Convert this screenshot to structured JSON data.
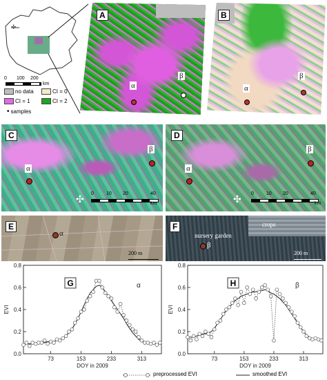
{
  "overview": {
    "scale_ticks": [
      "0",
      "100",
      "200"
    ],
    "scale_unit": "km",
    "legend": [
      {
        "label": "no data",
        "color": "#bdbdbd"
      },
      {
        "label": "CI = 0",
        "color": "#f5e9c8"
      },
      {
        "label": "CI = 1",
        "color": "#e36ae6"
      },
      {
        "label": "CI = 2",
        "color": "#1fa51f"
      },
      {
        "label": "samples",
        "color": "#000000"
      }
    ]
  },
  "panels": {
    "A": {
      "label": "A",
      "alpha": "α",
      "beta": "β"
    },
    "B": {
      "label": "B",
      "alpha": "α",
      "beta": "β"
    },
    "C": {
      "label": "C",
      "alpha": "α",
      "beta": "β",
      "scale": [
        "0",
        "10",
        "20",
        "40"
      ],
      "unit": "km"
    },
    "D": {
      "label": "D",
      "alpha": "α",
      "beta": "β",
      "scale": [
        "0",
        "10",
        "20",
        "40"
      ],
      "unit": "km"
    },
    "E": {
      "label": "E",
      "alpha": "α",
      "scale": "200 m"
    },
    "F": {
      "label": "F",
      "beta": "β",
      "scale": "200 m",
      "nursery": "nursery garden",
      "crops": "crops"
    },
    "G": {
      "label": "G",
      "greek": "α"
    },
    "H": {
      "label": "H",
      "greek": "β"
    }
  },
  "axes": {
    "ylabel": "EVI",
    "xlabel": "DOY in 2009",
    "xticks": [
      "73",
      "153",
      "233",
      "313"
    ],
    "yticks": [
      "0.0",
      "0.2",
      "0.4",
      "0.6",
      "0.8"
    ]
  },
  "footer": {
    "preprocessed": "preprocessed EVI",
    "smoothed": "smoothed EVI"
  },
  "chart_data": [
    {
      "type": "line",
      "panel": "G",
      "x": [
        1,
        9,
        17,
        25,
        33,
        41,
        49,
        57,
        65,
        73,
        81,
        89,
        97,
        105,
        113,
        121,
        129,
        137,
        145,
        153,
        161,
        169,
        177,
        185,
        193,
        201,
        209,
        217,
        225,
        233,
        241,
        249,
        257,
        265,
        273,
        281,
        289,
        297,
        305,
        313,
        321,
        329,
        337,
        345,
        353,
        361
      ],
      "series": [
        {
          "name": "preprocessed EVI",
          "values": [
            0.08,
            0.1,
            0.07,
            0.1,
            0.09,
            0.1,
            0.1,
            0.12,
            0.09,
            0.11,
            0.1,
            0.13,
            0.12,
            0.14,
            0.16,
            0.2,
            0.22,
            0.28,
            0.32,
            0.38,
            0.4,
            0.48,
            0.52,
            0.56,
            0.66,
            0.66,
            0.6,
            0.55,
            0.52,
            0.5,
            0.42,
            0.38,
            0.45,
            0.35,
            0.3,
            0.26,
            0.22,
            0.2,
            0.15,
            0.12,
            0.1,
            0.1,
            0.09,
            0.1,
            0.08,
            0.1
          ]
        },
        {
          "name": "smoothed EVI",
          "values": [
            0.09,
            0.09,
            0.09,
            0.09,
            0.1,
            0.1,
            0.1,
            0.1,
            0.11,
            0.11,
            0.11,
            0.12,
            0.13,
            0.14,
            0.16,
            0.19,
            0.22,
            0.27,
            0.32,
            0.38,
            0.44,
            0.5,
            0.55,
            0.58,
            0.61,
            0.62,
            0.6,
            0.56,
            0.52,
            0.48,
            0.44,
            0.4,
            0.36,
            0.32,
            0.27,
            0.23,
            0.19,
            0.16,
            0.13,
            0.11,
            0.1,
            0.1,
            0.09,
            0.09,
            0.09,
            0.09
          ]
        }
      ],
      "xlabel": "DOY in 2009",
      "ylabel": "EVI",
      "xlim": [
        1,
        365
      ],
      "ylim": [
        0,
        0.8
      ]
    },
    {
      "type": "line",
      "panel": "H",
      "x": [
        1,
        9,
        17,
        25,
        33,
        41,
        49,
        57,
        65,
        73,
        81,
        89,
        97,
        105,
        113,
        121,
        129,
        137,
        145,
        153,
        161,
        169,
        177,
        185,
        193,
        201,
        209,
        217,
        225,
        233,
        241,
        249,
        257,
        265,
        273,
        281,
        289,
        297,
        305,
        313,
        321,
        329,
        337,
        345,
        353,
        361
      ],
      "series": [
        {
          "name": "preprocessed EVI",
          "values": [
            0.15,
            0.12,
            0.16,
            0.13,
            0.18,
            0.16,
            0.2,
            0.18,
            0.15,
            0.22,
            0.28,
            0.3,
            0.36,
            0.4,
            0.42,
            0.46,
            0.5,
            0.44,
            0.56,
            0.46,
            0.6,
            0.54,
            0.58,
            0.5,
            0.56,
            0.6,
            0.62,
            0.58,
            0.52,
            0.12,
            0.58,
            0.54,
            0.5,
            0.46,
            0.42,
            0.38,
            0.34,
            0.28,
            0.24,
            0.2,
            0.16,
            0.14,
            0.13,
            0.14,
            0.13,
            0.12
          ]
        },
        {
          "name": "smoothed EVI",
          "values": [
            0.15,
            0.15,
            0.15,
            0.16,
            0.17,
            0.18,
            0.18,
            0.19,
            0.2,
            0.23,
            0.27,
            0.31,
            0.35,
            0.39,
            0.42,
            0.45,
            0.48,
            0.5,
            0.52,
            0.53,
            0.54,
            0.55,
            0.56,
            0.56,
            0.57,
            0.57,
            0.58,
            0.57,
            0.55,
            0.54,
            0.52,
            0.5,
            0.47,
            0.44,
            0.4,
            0.36,
            0.32,
            0.28,
            0.24,
            0.2,
            0.17,
            0.15,
            0.14,
            0.14,
            0.13,
            0.13
          ]
        }
      ],
      "xlabel": "DOY in 2009",
      "ylabel": "EVI",
      "xlim": [
        1,
        365
      ],
      "ylim": [
        0,
        0.8
      ]
    }
  ]
}
